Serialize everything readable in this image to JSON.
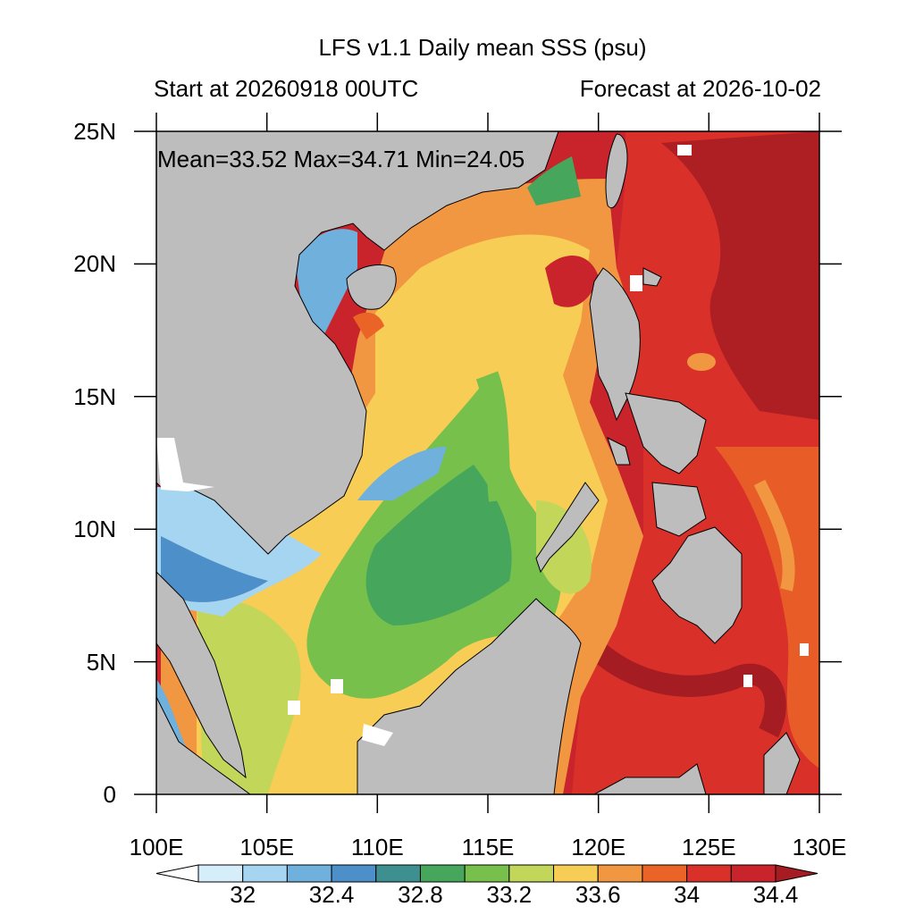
{
  "title": "LFS v1.1 Daily mean SSS (psu)",
  "subtitle_left": "Start at 20260918 00UTC",
  "subtitle_right": "Forecast at 2026-10-02",
  "stats": "Mean=33.52  Max=34.71  Min=24.05",
  "map": {
    "lon_range": [
      100,
      130
    ],
    "lat_range": [
      0,
      25
    ],
    "lon_ticks": [
      "100E",
      "105E",
      "110E",
      "115E",
      "120E",
      "125E",
      "130E"
    ],
    "lat_ticks": [
      "25N",
      "20N",
      "15N",
      "10N",
      "5N",
      "0"
    ],
    "land_color": "#bdbdbd",
    "missing_color": "#ffffff"
  },
  "colorbar": {
    "colors": [
      "#ffffff",
      "#d6eef9",
      "#a5d5f0",
      "#6fb0dd",
      "#4d8fc9",
      "#3e8f8f",
      "#45a65c",
      "#77c04b",
      "#c2d659",
      "#f8cd55",
      "#f29741",
      "#ea6428",
      "#d9302a",
      "#c9232b",
      "#a51c22"
    ],
    "labels": [
      "32",
      "32.4",
      "32.8",
      "33.2",
      "33.6",
      "34",
      "34.4"
    ]
  }
}
